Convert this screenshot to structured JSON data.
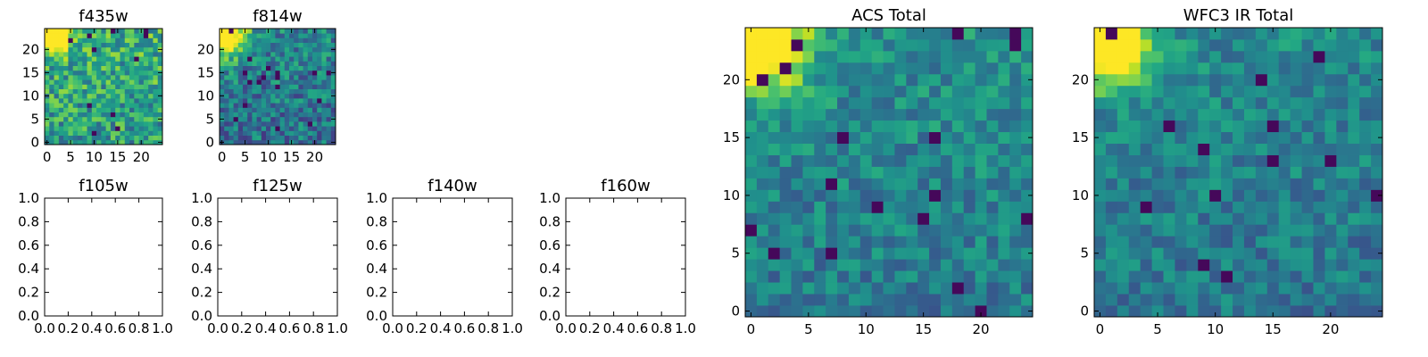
{
  "chart_data": [
    {
      "type": "heatmap",
      "title": "f435w",
      "colormap": "viridis",
      "grid_size": [
        25,
        25
      ],
      "xlim": [
        -0.5,
        24.5
      ],
      "ylim": [
        -0.5,
        24.5
      ],
      "xticks": [
        0,
        5,
        10,
        15,
        20
      ],
      "yticks": [
        0,
        5,
        10,
        15,
        20
      ],
      "description_values": "pixel intensities normalized 0-1; bright corner near (1,23), noisy elsewhere",
      "pattern": {
        "peak": [
          1,
          23
        ],
        "peak_sigma": 2.5,
        "base": 0.55,
        "noise": 0.25,
        "seed": 11
      }
    },
    {
      "type": "heatmap",
      "title": "f814w",
      "colormap": "viridis",
      "grid_size": [
        25,
        25
      ],
      "xlim": [
        -0.5,
        24.5
      ],
      "ylim": [
        -0.5,
        24.5
      ],
      "xticks": [
        0,
        5,
        10,
        15,
        20
      ],
      "yticks": [
        0,
        5,
        10,
        15,
        20
      ],
      "pattern": {
        "peak": [
          1,
          23
        ],
        "peak_sigma": 3.0,
        "base": 0.38,
        "noise": 0.22,
        "seed": 23
      }
    },
    {
      "type": "heatmap",
      "title": "f105w",
      "empty": true,
      "xlim": [
        0,
        1
      ],
      "ylim": [
        0,
        1
      ],
      "xticks": [
        0.0,
        0.2,
        0.4,
        0.6,
        0.8,
        1.0
      ],
      "yticks": [
        0.0,
        0.2,
        0.4,
        0.6,
        0.8,
        1.0
      ],
      "xticklabels": [
        "0.0",
        "0.2",
        "0.4",
        "0.6",
        "0.8",
        "1.0"
      ],
      "yticklabels": [
        "0.0",
        "0.2",
        "0.4",
        "0.6",
        "0.8",
        "1.0"
      ]
    },
    {
      "type": "heatmap",
      "title": "f125w",
      "empty": true,
      "xlim": [
        0,
        1
      ],
      "ylim": [
        0,
        1
      ],
      "xticks": [
        0.0,
        0.2,
        0.4,
        0.6,
        0.8,
        1.0
      ],
      "yticks": [
        0.0,
        0.2,
        0.4,
        0.6,
        0.8,
        1.0
      ],
      "xticklabels": [
        "0.0",
        "0.2",
        "0.4",
        "0.6",
        "0.8",
        "1.0"
      ],
      "yticklabels": [
        "0.0",
        "0.2",
        "0.4",
        "0.6",
        "0.8",
        "1.0"
      ]
    },
    {
      "type": "heatmap",
      "title": "f140w",
      "empty": true,
      "xlim": [
        0,
        1
      ],
      "ylim": [
        0,
        1
      ],
      "xticks": [
        0.0,
        0.2,
        0.4,
        0.6,
        0.8,
        1.0
      ],
      "yticks": [
        0.0,
        0.2,
        0.4,
        0.6,
        0.8,
        1.0
      ],
      "xticklabels": [
        "0.0",
        "0.2",
        "0.4",
        "0.6",
        "0.8",
        "1.0"
      ],
      "yticklabels": [
        "0.0",
        "0.2",
        "0.4",
        "0.6",
        "0.8",
        "1.0"
      ]
    },
    {
      "type": "heatmap",
      "title": "f160w",
      "empty": true,
      "xlim": [
        0,
        1
      ],
      "ylim": [
        0,
        1
      ],
      "xticks": [
        0.0,
        0.2,
        0.4,
        0.6,
        0.8,
        1.0
      ],
      "yticks": [
        0.0,
        0.2,
        0.4,
        0.6,
        0.8,
        1.0
      ],
      "xticklabels": [
        "0.0",
        "0.2",
        "0.4",
        "0.6",
        "0.8",
        "1.0"
      ],
      "yticklabels": [
        "0.0",
        "0.2",
        "0.4",
        "0.6",
        "0.8",
        "1.0"
      ]
    },
    {
      "type": "heatmap",
      "title": "ACS Total",
      "colormap": "viridis",
      "grid_size": [
        25,
        25
      ],
      "xlim": [
        -0.5,
        24.5
      ],
      "ylim": [
        -0.5,
        24.5
      ],
      "xticks": [
        0,
        5,
        10,
        15,
        20
      ],
      "yticks": [
        0,
        5,
        10,
        15,
        20
      ],
      "pattern": {
        "peak": [
          1,
          23
        ],
        "peak_sigma": 2.6,
        "base": 0.42,
        "noise": 0.16,
        "seed": 37
      }
    },
    {
      "type": "heatmap",
      "title": "WFC3 IR Total",
      "colormap": "viridis",
      "grid_size": [
        25,
        25
      ],
      "xlim": [
        -0.5,
        24.5
      ],
      "ylim": [
        -0.5,
        24.5
      ],
      "xticks": [
        0,
        5,
        10,
        15,
        20
      ],
      "yticks": [
        0,
        5,
        10,
        15,
        20
      ],
      "pattern": {
        "peak": [
          1,
          23
        ],
        "peak_sigma": 2.4,
        "base": 0.4,
        "noise": 0.15,
        "seed": 53
      }
    }
  ]
}
